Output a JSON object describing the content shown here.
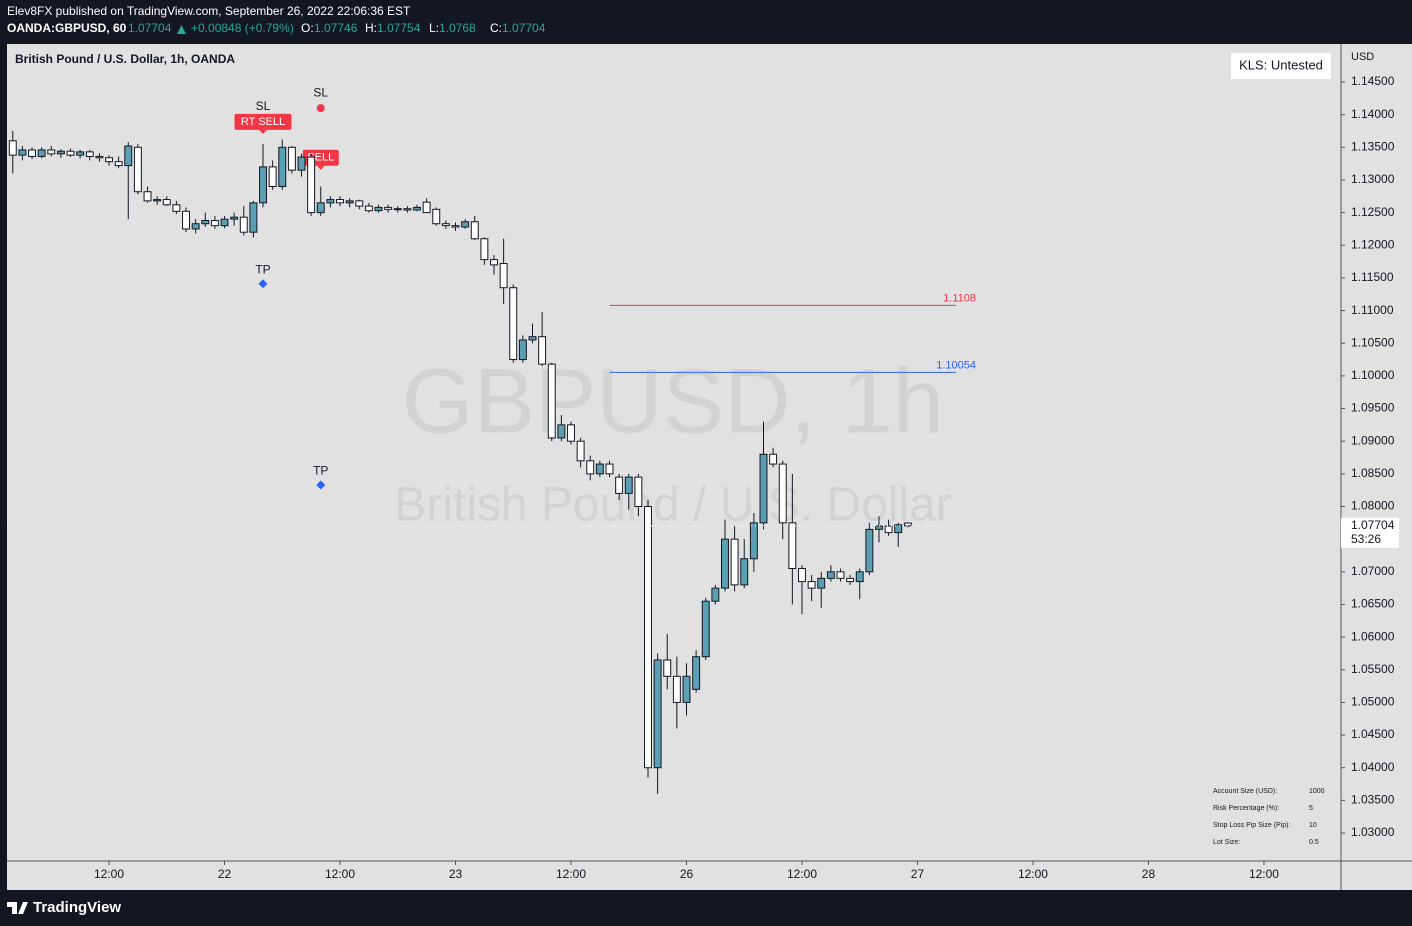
{
  "header": {
    "published": "Elev8FX published on TradingView.com, September 26, 2022 22:06:36 EST",
    "symbol": "OANDA:GBPUSD, 60",
    "change": "+0.00848 (+0.79%)",
    "o": "O:",
    "h": "H:",
    "l": "L:",
    "c": "C:"
  },
  "chart_data": {
    "type": "candlestick",
    "title": "British Pound / U.S. Dollar, 1h, OANDA",
    "watermark": [
      "GBPUSD, 1h",
      "British Pound / U.S. Dollar"
    ],
    "currency": "USD",
    "up_color": "#5a9fb3",
    "down_color": "#ffffff",
    "x": [
      0,
      1,
      2,
      3,
      4,
      5,
      6,
      7,
      8,
      9,
      10,
      11,
      12,
      13,
      14,
      15,
      16,
      17,
      18,
      19,
      20,
      21,
      22,
      23,
      24,
      25,
      26,
      27,
      28,
      29,
      30,
      31,
      32,
      33,
      34,
      35,
      36,
      37,
      38,
      39,
      40,
      41,
      42,
      43,
      44,
      45,
      46,
      47,
      48,
      49,
      50,
      51,
      52,
      53,
      54,
      55,
      56,
      57,
      58,
      59,
      60,
      61,
      62,
      63,
      64,
      65,
      66,
      67,
      68,
      69,
      70,
      71,
      72,
      73,
      74,
      75,
      76,
      77,
      78,
      79,
      80,
      81,
      82,
      83,
      84,
      85,
      86,
      87,
      88,
      89,
      90,
      91,
      92,
      93
    ],
    "open": [
      1.136,
      1.1338,
      1.1346,
      1.1336,
      1.1346,
      1.134,
      1.1344,
      1.1338,
      1.1343,
      1.1336,
      1.1334,
      1.1328,
      1.1322,
      1.135,
      1.1282,
      1.1268,
      1.127,
      1.1262,
      1.1252,
      1.1225,
      1.1233,
      1.1238,
      1.123,
      1.124,
      1.1243,
      1.122,
      1.1265,
      1.132,
      1.129,
      1.135,
      1.1315,
      1.1335,
      1.125,
      1.1265,
      1.127,
      1.1265,
      1.1268,
      1.126,
      1.1253,
      1.1258,
      1.1255,
      1.1256,
      1.1254,
      1.1266,
      1.1255,
      1.1233,
      1.123,
      1.1228,
      1.1236,
      1.121,
      1.1178,
      1.1172,
      1.1135,
      1.1025,
      1.1055,
      1.106,
      1.1018,
      1.0905,
      1.0925,
      1.09,
      1.087,
      1.085,
      1.0865,
      1.0845,
      1.082,
      1.0845,
      1.08,
      1.04,
      1.0565,
      1.054,
      1.05,
      1.052,
      1.057,
      1.0655,
      1.0675,
      1.075,
      1.068,
      1.072,
      1.0775,
      1.088,
      1.0865,
      1.0775,
      1.0705,
      1.0685,
      1.0675,
      1.069,
      1.07,
      1.069,
      1.0685,
      1.07,
      1.0765,
      1.077,
      1.076,
      1.07746
    ],
    "high": [
      1.1375,
      1.1352,
      1.135,
      1.135,
      1.1352,
      1.1347,
      1.1348,
      1.1346,
      1.1346,
      1.1341,
      1.1338,
      1.1336,
      1.1358,
      1.1355,
      1.129,
      1.1275,
      1.1275,
      1.1268,
      1.1258,
      1.124,
      1.125,
      1.1245,
      1.1245,
      1.125,
      1.126,
      1.1268,
      1.1355,
      1.133,
      1.1362,
      1.1352,
      1.134,
      1.134,
      1.129,
      1.1275,
      1.1275,
      1.1272,
      1.127,
      1.1265,
      1.1262,
      1.1262,
      1.126,
      1.126,
      1.1262,
      1.1272,
      1.1258,
      1.1238,
      1.1235,
      1.124,
      1.1245,
      1.1212,
      1.1185,
      1.121,
      1.114,
      1.1062,
      1.108,
      1.1098,
      1.102,
      1.094,
      1.093,
      1.0905,
      1.0878,
      1.087,
      1.087,
      1.085,
      1.085,
      1.085,
      1.081,
      1.0575,
      1.0605,
      1.057,
      1.056,
      1.058,
      1.066,
      1.068,
      1.078,
      1.077,
      1.075,
      1.079,
      1.093,
      1.089,
      1.087,
      1.085,
      1.071,
      1.0695,
      1.07,
      1.071,
      1.0705,
      1.0695,
      1.0705,
      1.0775,
      1.0785,
      1.078,
      1.0775,
      1.07754
    ],
    "low": [
      1.131,
      1.133,
      1.1332,
      1.1333,
      1.1336,
      1.1334,
      1.1335,
      1.1333,
      1.133,
      1.1328,
      1.1322,
      1.1318,
      1.124,
      1.1278,
      1.1265,
      1.1262,
      1.126,
      1.1248,
      1.122,
      1.1218,
      1.1228,
      1.1225,
      1.1226,
      1.123,
      1.1215,
      1.1212,
      1.1258,
      1.1285,
      1.1285,
      1.131,
      1.1305,
      1.1245,
      1.1245,
      1.1258,
      1.126,
      1.1258,
      1.1255,
      1.125,
      1.125,
      1.125,
      1.125,
      1.125,
      1.1252,
      1.125,
      1.123,
      1.1225,
      1.1222,
      1.1225,
      1.1208,
      1.117,
      1.1155,
      1.111,
      1.102,
      1.102,
      1.105,
      1.1015,
      1.09,
      1.09,
      1.0895,
      1.086,
      1.084,
      1.0845,
      1.0845,
      1.081,
      1.0795,
      1.0785,
      1.0385,
      1.036,
      1.052,
      1.046,
      1.048,
      1.0515,
      1.0565,
      1.065,
      1.067,
      1.067,
      1.0675,
      1.07,
      1.0765,
      1.086,
      1.075,
      1.065,
      1.0635,
      1.0655,
      1.0645,
      1.0685,
      1.0685,
      1.068,
      1.0658,
      1.0695,
      1.0745,
      1.0755,
      1.0738,
      1.0768
    ],
    "close": [
      1.1338,
      1.1346,
      1.1336,
      1.1346,
      1.134,
      1.1344,
      1.1338,
      1.1343,
      1.1336,
      1.1334,
      1.1328,
      1.1322,
      1.1352,
      1.1282,
      1.1268,
      1.127,
      1.1262,
      1.1252,
      1.1225,
      1.1233,
      1.1238,
      1.123,
      1.124,
      1.1243,
      1.122,
      1.1265,
      1.132,
      1.129,
      1.135,
      1.1315,
      1.1335,
      1.125,
      1.1265,
      1.127,
      1.1265,
      1.1268,
      1.126,
      1.1253,
      1.1258,
      1.1255,
      1.1256,
      1.1254,
      1.1258,
      1.125,
      1.1233,
      1.123,
      1.1228,
      1.1236,
      1.121,
      1.1178,
      1.117,
      1.1135,
      1.1025,
      1.1055,
      1.106,
      1.1018,
      1.0905,
      1.0925,
      1.09,
      1.087,
      1.085,
      1.0865,
      1.085,
      1.082,
      1.0845,
      1.08,
      1.04,
      1.0565,
      1.054,
      1.05,
      1.054,
      1.057,
      1.0655,
      1.0675,
      1.075,
      1.068,
      1.072,
      1.0775,
      1.088,
      1.0865,
      1.0775,
      1.0705,
      1.0685,
      1.0675,
      1.069,
      1.07,
      1.069,
      1.0685,
      1.07,
      1.0765,
      1.077,
      1.076,
      1.0772,
      1.07704
    ],
    "xlim": [
      -0.6,
      137.9
    ],
    "xticks": [
      {
        "value": 10,
        "label": "12:00"
      },
      {
        "value": 22,
        "label": "22"
      },
      {
        "value": 34,
        "label": "12:00"
      },
      {
        "value": 46,
        "label": "23"
      },
      {
        "value": 58,
        "label": "12:00"
      },
      {
        "value": 70,
        "label": "26"
      },
      {
        "value": 82,
        "label": "12:00"
      },
      {
        "value": 94,
        "label": "27"
      },
      {
        "value": 106,
        "label": "12:00"
      },
      {
        "value": 118,
        "label": "28"
      },
      {
        "value": 130,
        "label": "12:00"
      }
    ],
    "ylim": [
      1.02587,
      1.15082
    ],
    "yticks": [
      {
        "value": 1.03,
        "label": "1.03000"
      },
      {
        "value": 1.035,
        "label": "1.03500"
      },
      {
        "value": 1.04,
        "label": "1.04000"
      },
      {
        "value": 1.045,
        "label": "1.04500"
      },
      {
        "value": 1.05,
        "label": "1.05000"
      },
      {
        "value": 1.055,
        "label": "1.05500"
      },
      {
        "value": 1.06,
        "label": "1.06000"
      },
      {
        "value": 1.065,
        "label": "1.06500"
      },
      {
        "value": 1.07,
        "label": "1.07000"
      },
      {
        "value": 1.08,
        "label": "1.08000"
      },
      {
        "value": 1.085,
        "label": "1.08500"
      },
      {
        "value": 1.09,
        "label": "1.09000"
      },
      {
        "value": 1.095,
        "label": "1.09500"
      },
      {
        "value": 1.1,
        "label": "1.10000"
      },
      {
        "value": 1.105,
        "label": "1.10500"
      },
      {
        "value": 1.11,
        "label": "1.11000"
      },
      {
        "value": 1.115,
        "label": "1.11500"
      },
      {
        "value": 1.12,
        "label": "1.12000"
      },
      {
        "value": 1.125,
        "label": "1.12500"
      },
      {
        "value": 1.13,
        "label": "1.13000"
      },
      {
        "value": 1.135,
        "label": "1.13500"
      },
      {
        "value": 1.14,
        "label": "1.14000"
      },
      {
        "value": 1.145,
        "label": "1.14500"
      }
    ],
    "levels": [
      {
        "value": 1.1108,
        "x": [
          62,
          98
        ],
        "color": "#f23645"
      },
      {
        "value": 1.10054,
        "x": [
          62,
          98
        ],
        "color": "#2962ff"
      }
    ],
    "annotations": [
      {
        "text": "SL",
        "x": 26,
        "y": 1.1412,
        "style": "text"
      },
      {
        "text": "RT SELL",
        "x": 26,
        "y": 1.1389,
        "style": "box"
      },
      {
        "text": "SL",
        "x": 32,
        "y": 1.1433,
        "style": "text"
      },
      {
        "text": "SELL",
        "x": 32,
        "y": 1.1334,
        "style": "box"
      },
      {
        "text": "TP",
        "x": 26,
        "y": 1.1162,
        "style": "text"
      },
      {
        "text": "TP",
        "x": 32,
        "y": 1.0854,
        "style": "text"
      }
    ],
    "markers": [
      {
        "x": 32,
        "y": 1.141,
        "shape": "circle",
        "color": "#f23645"
      },
      {
        "x": 26,
        "y": 1.1141,
        "shape": "diamond",
        "color": "#2962ff"
      },
      {
        "x": 32,
        "y": 1.0833,
        "shape": "diamond",
        "color": "#2962ff"
      }
    ],
    "countdown": "53:26",
    "indicator_label": "KLS: Untested",
    "info_table": [
      [
        "Account Size (USD):",
        1000
      ],
      [
        "Risk Percentage (%):",
        5
      ],
      [
        "Stop Loss Pip Size (Pip):",
        10
      ],
      [
        "Lot Size:",
        0.5
      ]
    ]
  },
  "footer": {
    "brand": "TradingView"
  }
}
